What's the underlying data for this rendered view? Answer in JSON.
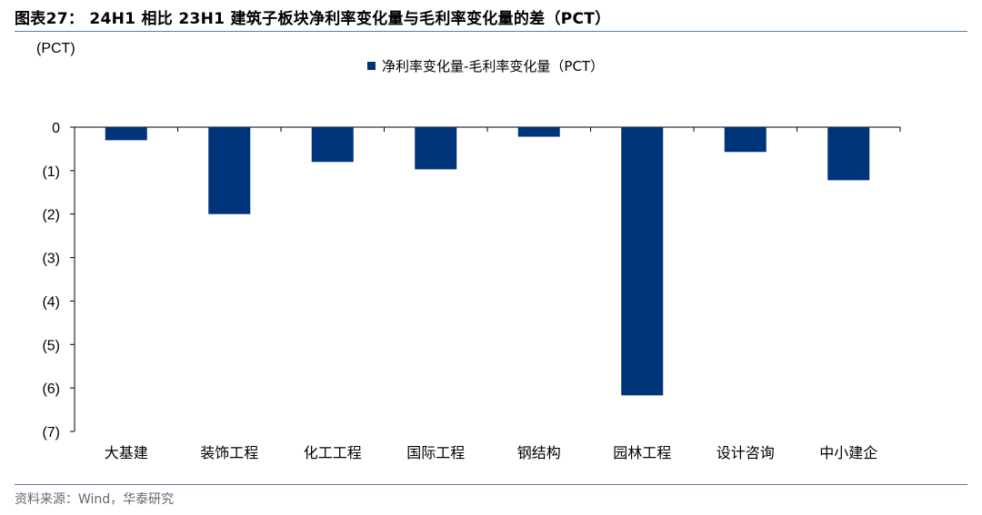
{
  "figure": {
    "title": "图表27： 24H1 相比 23H1 建筑子板块净利率变化量与毛利率变化量的差（PCT）",
    "source": "资料来源：Wind，华泰研究"
  },
  "chart_data": {
    "type": "bar",
    "title": "",
    "unit_label": "(PCT)",
    "xlabel": "",
    "ylabel": "",
    "categories": [
      "大基建",
      "装饰工程",
      "化工工程",
      "国际工程",
      "钢结构",
      "园林工程",
      "设计咨询",
      "中小建企"
    ],
    "series": [
      {
        "name": "净利率变化量-毛利率变化量（PCT）",
        "color": "#003478",
        "values": [
          -0.3,
          -2.0,
          -0.8,
          -0.97,
          -0.22,
          -6.17,
          -0.57,
          -1.22
        ]
      }
    ],
    "ylim": [
      -7,
      0
    ],
    "yticks": [
      0,
      -1,
      -2,
      -3,
      -4,
      -5,
      -6,
      -7
    ],
    "ytick_labels": [
      "0",
      "(1)",
      "(2)",
      "(3)",
      "(4)",
      "(5)",
      "(6)",
      "(7)"
    ],
    "grid": false,
    "legend_position": "top-center"
  }
}
